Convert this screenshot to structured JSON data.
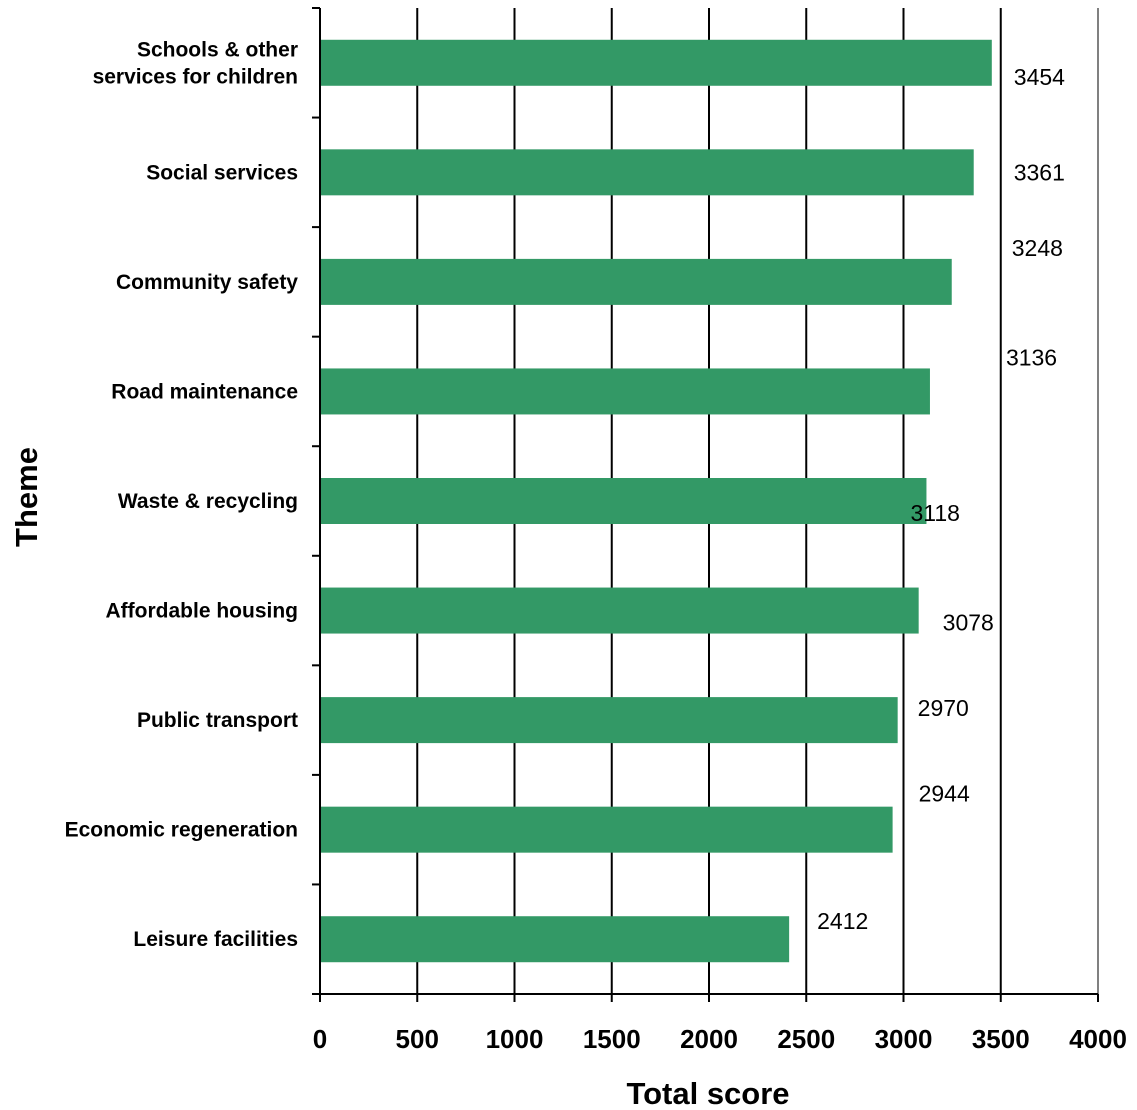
{
  "chart_data": {
    "type": "bar",
    "orientation": "horizontal",
    "categories": [
      [
        "Schools & other",
        "services for children"
      ],
      [
        "Social services"
      ],
      [
        "Community safety"
      ],
      [
        "Road maintenance"
      ],
      [
        "Waste & recycling"
      ],
      [
        "Affordable housing"
      ],
      [
        "Public transport"
      ],
      [
        "Economic regeneration"
      ],
      [
        "Leisure facilities"
      ]
    ],
    "values": [
      3454,
      3361,
      3248,
      3136,
      3118,
      3078,
      2970,
      2944,
      2412
    ],
    "data_labels": [
      "3454",
      "3361",
      "3248",
      "3136",
      "3118",
      "3078",
      "2970",
      "2944",
      "2412"
    ],
    "xlabel": "Total score",
    "ylabel": "Theme",
    "xlim": [
      0,
      4000
    ],
    "xticks": [
      "0",
      "500",
      "1000",
      "1500",
      "2000",
      "2500",
      "3000",
      "3500",
      "4000"
    ],
    "grid": "vertical",
    "bar_color": "#339966",
    "legend": "none"
  }
}
